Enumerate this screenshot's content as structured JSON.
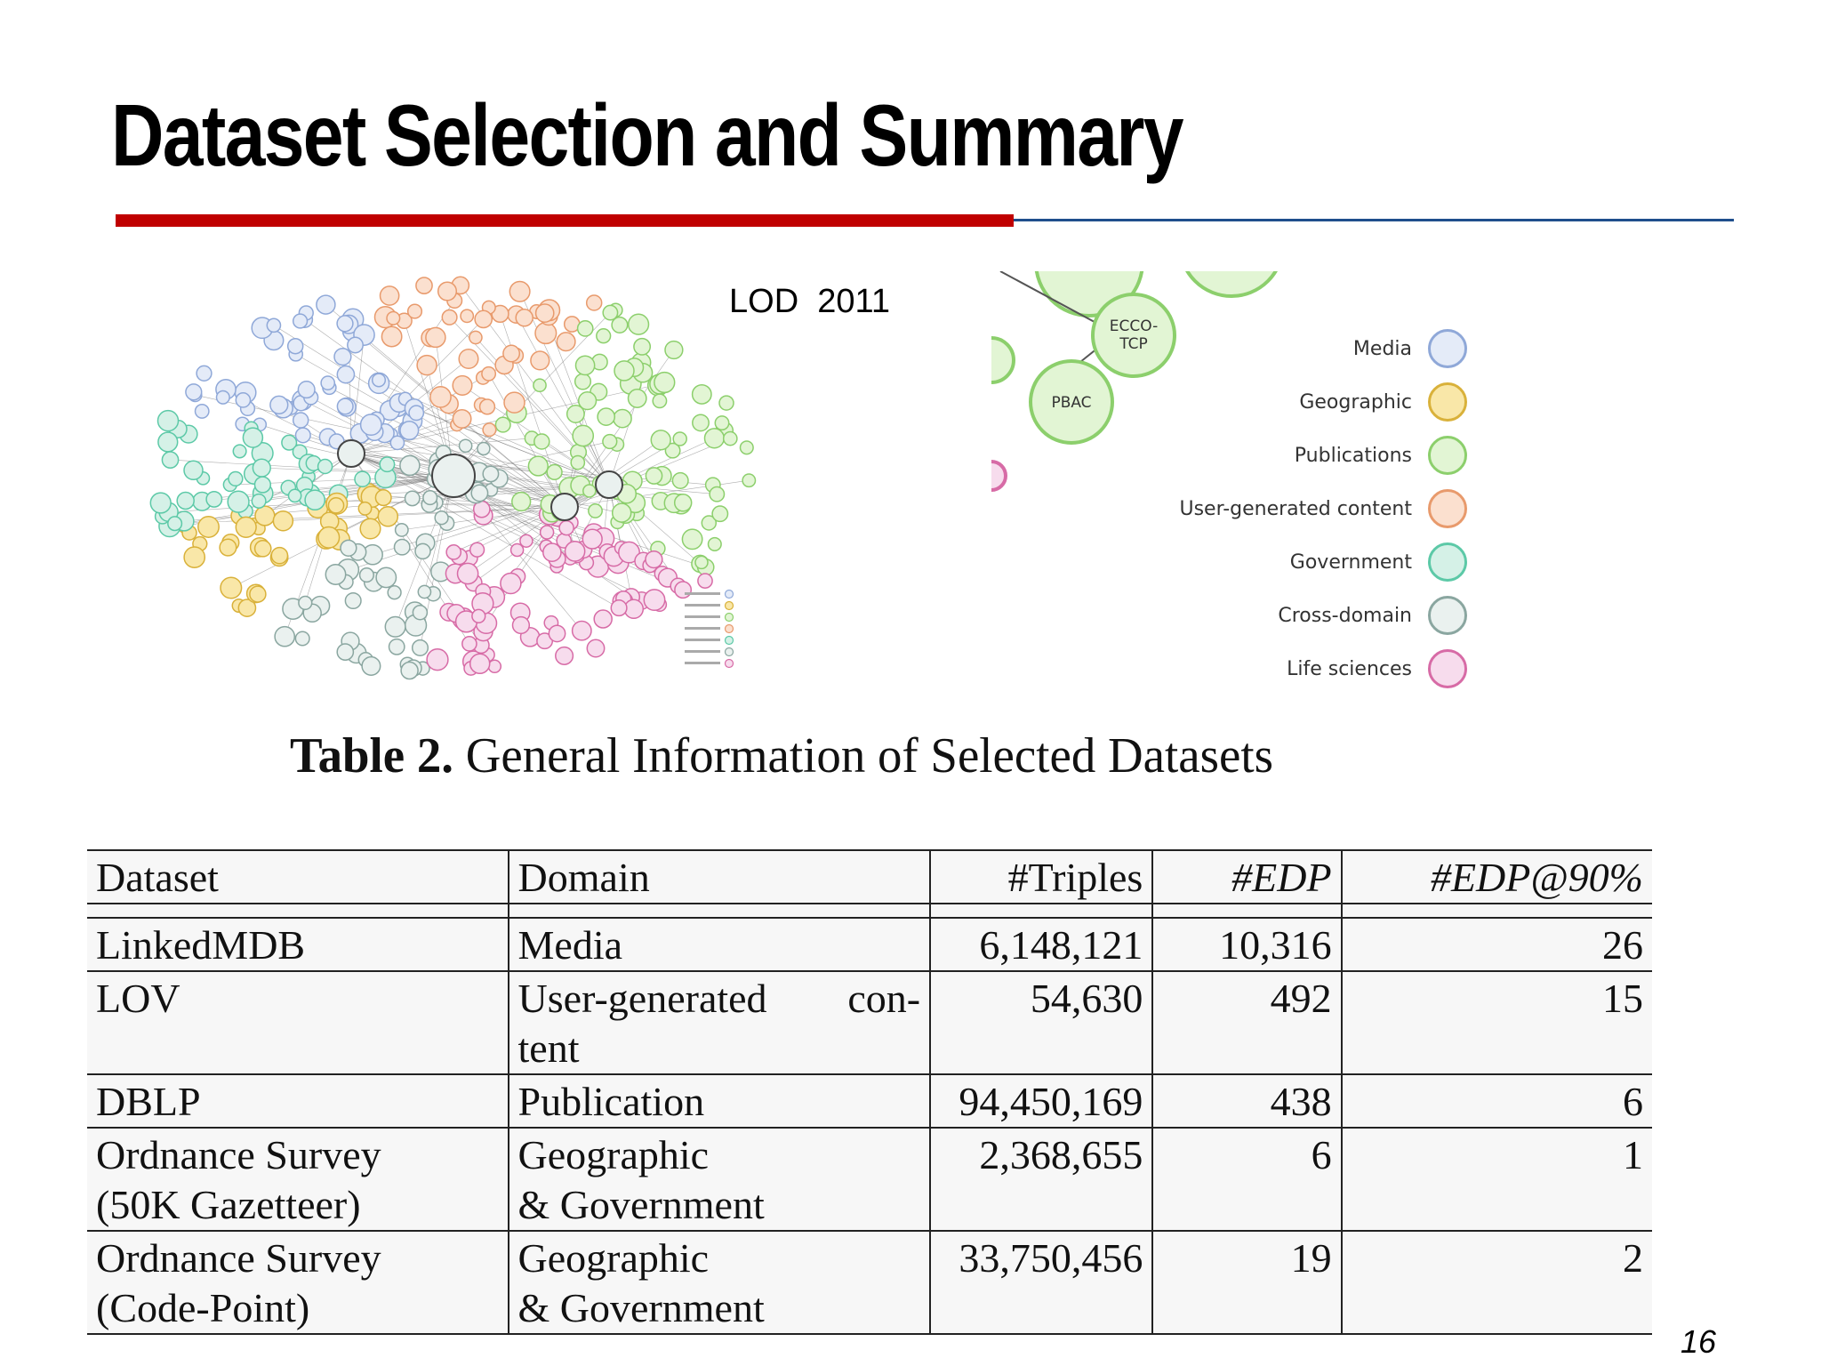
{
  "slide": {
    "title": "Dataset Selection and Summary",
    "page_number": "16"
  },
  "figure": {
    "caption": "LOD  2011",
    "zoom_nodes": [
      "ECCO-TCP",
      "PBAC"
    ],
    "legend": [
      {
        "label": "Media",
        "color": "#8fa8d8",
        "fill": "#e4ebf8"
      },
      {
        "label": "Geographic",
        "color": "#d9b13a",
        "fill": "#f9e7a8"
      },
      {
        "label": "Publications",
        "color": "#8ccf6c",
        "fill": "#e2f5d4"
      },
      {
        "label": "User-generated content",
        "color": "#e89a6c",
        "fill": "#fbe0cf"
      },
      {
        "label": "Government",
        "color": "#5cc9a7",
        "fill": "#d5f1e7"
      },
      {
        "label": "Cross-domain",
        "color": "#8aa6a0",
        "fill": "#eaf1ef"
      },
      {
        "label": "Life sciences",
        "color": "#d76ba6",
        "fill": "#f7dced"
      }
    ]
  },
  "table": {
    "caption_bold": "Table 2.",
    "caption_text": " General Information of Selected Datasets",
    "headers": [
      "Dataset",
      "Domain",
      "#Triples",
      "#EDP",
      "#EDP@90%"
    ],
    "rows": [
      {
        "dataset": "LinkedMDB",
        "domain": "Media",
        "triples": "6,148,121",
        "edp": "10,316",
        "edp90": "26"
      },
      {
        "dataset": "LOV",
        "domain_line1a": "User-generated",
        "domain_line1b": "con-",
        "domain_line2": "tent",
        "triples": "54,630",
        "edp": "492",
        "edp90": "15"
      },
      {
        "dataset": "DBLP",
        "domain": "Publication",
        "triples": "94,450,169",
        "edp": "438",
        "edp90": "6"
      },
      {
        "dataset_line1": "Ordnance Survey",
        "dataset_line2": "(50K Gazetteer)",
        "domain_line1": "Geographic",
        "domain_line2": "& Government",
        "triples": "2,368,655",
        "edp": "6",
        "edp90": "1"
      },
      {
        "dataset_line1": "Ordnance Survey",
        "dataset_line2": "(Code-Point)",
        "domain_line1": "Geographic",
        "domain_line2": "& Government",
        "triples": "33,750,456",
        "edp": "19",
        "edp90": "2"
      }
    ]
  }
}
